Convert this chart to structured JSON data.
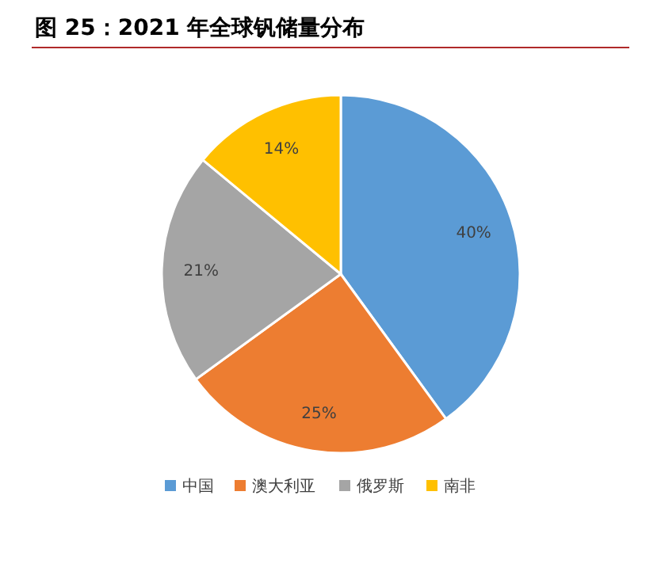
{
  "chart_data": {
    "type": "pie",
    "title": "图 25：2021 年全球钒储量分布",
    "categories": [
      "中国",
      "澳大利亚",
      "俄罗斯",
      "南非"
    ],
    "values": [
      40,
      25,
      21,
      14
    ],
    "value_labels": [
      "40%",
      "25%",
      "21%",
      "14%"
    ],
    "colors": [
      "#5b9bd5",
      "#ed7d31",
      "#a5a5a5",
      "#ffc000"
    ],
    "legend": "bottom"
  }
}
